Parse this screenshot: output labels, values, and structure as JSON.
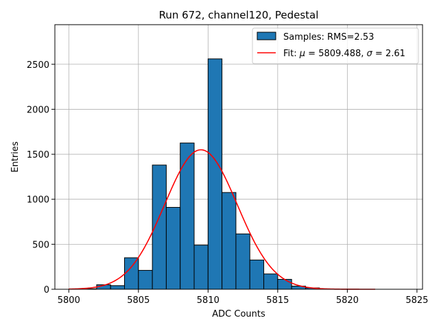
{
  "chart_data": {
    "type": "bar",
    "title": "Run 672, channel120, Pedestal",
    "xlabel": "ADC Counts",
    "ylabel": "Entries",
    "xlim": [
      5799,
      5825.4
    ],
    "ylim": [
      0,
      2940
    ],
    "xticks": [
      5800,
      5805,
      5810,
      5815,
      5820,
      5825
    ],
    "yticks": [
      0,
      500,
      1000,
      1500,
      2000,
      2500
    ],
    "grid": true,
    "legend_position": "top-right",
    "histogram": {
      "name": "Samples: RMS=2.53",
      "color": "#1f77b4",
      "edge_color": "#000000",
      "bin_width": 1,
      "bins": [
        {
          "x0": 5801,
          "value": 5
        },
        {
          "x0": 5802,
          "value": 50
        },
        {
          "x0": 5803,
          "value": 40
        },
        {
          "x0": 5804,
          "value": 350
        },
        {
          "x0": 5805,
          "value": 210
        },
        {
          "x0": 5806,
          "value": 1380
        },
        {
          "x0": 5807,
          "value": 910
        },
        {
          "x0": 5808,
          "value": 1625
        },
        {
          "x0": 5809,
          "value": 490
        },
        {
          "x0": 5810,
          "value": 2560
        },
        {
          "x0": 5811,
          "value": 1075
        },
        {
          "x0": 5812,
          "value": 615
        },
        {
          "x0": 5813,
          "value": 325
        },
        {
          "x0": 5814,
          "value": 170
        },
        {
          "x0": 5815,
          "value": 110
        },
        {
          "x0": 5816,
          "value": 35
        },
        {
          "x0": 5817,
          "value": 15
        },
        {
          "x0": 5818,
          "value": 3
        }
      ]
    },
    "fit": {
      "name_prefix": "Fit: ",
      "mu_value": "5809.488",
      "sigma_value": "2.61",
      "color": "#ff0000",
      "mu": 5809.488,
      "sigma": 2.61,
      "amplitude": 1550,
      "x_range": [
        5800,
        5822
      ]
    }
  }
}
